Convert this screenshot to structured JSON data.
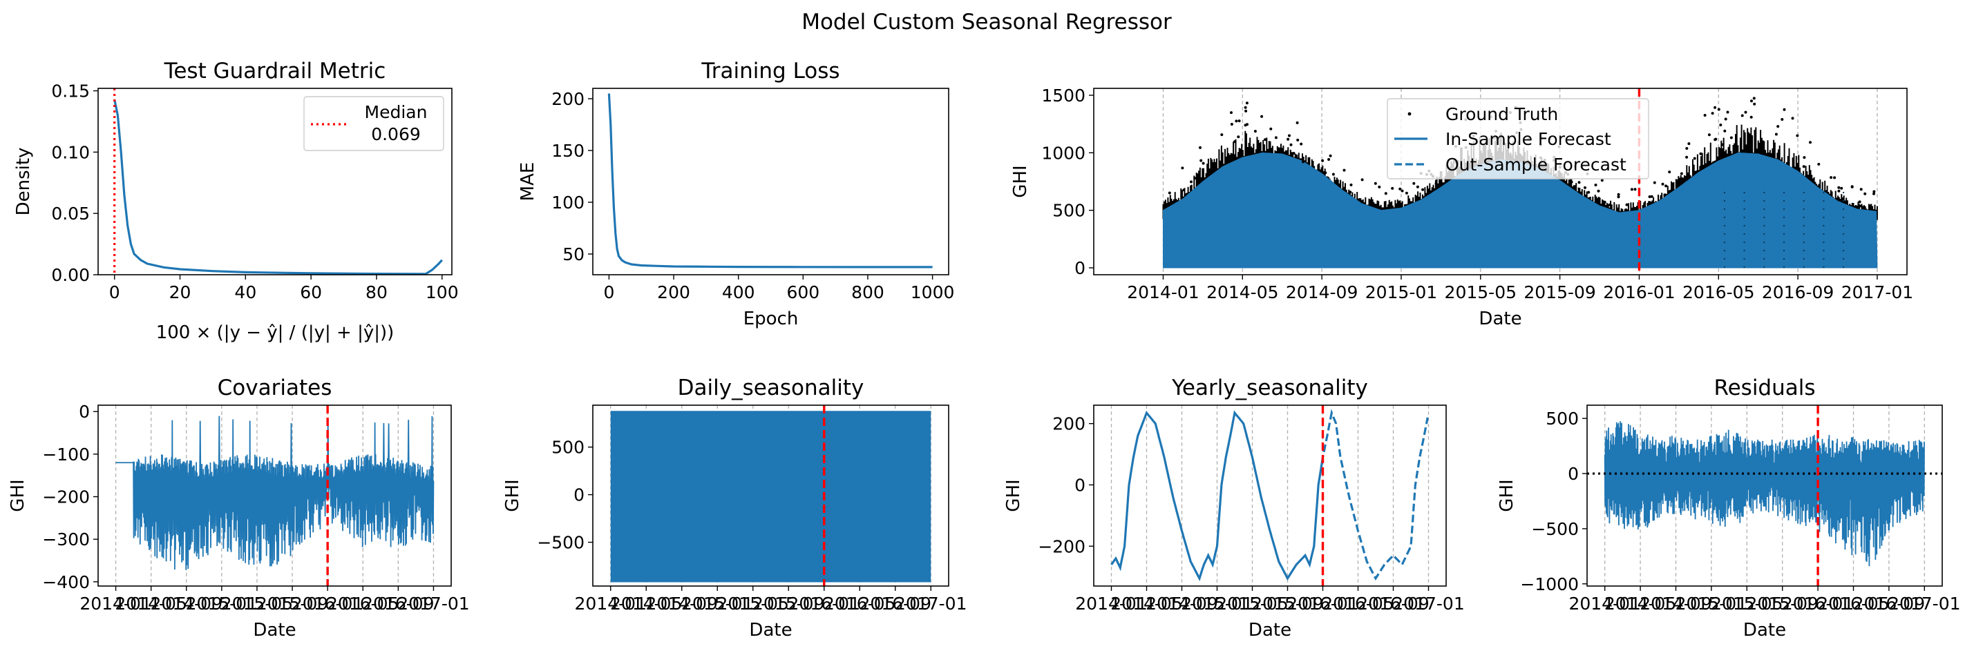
{
  "figure": {
    "title": "Model Custom Seasonal Regressor"
  },
  "colors": {
    "series": "#1f77b4",
    "truth": "#000000",
    "split": "#ff0000",
    "median": "#ff0000",
    "zero_line": "#000000",
    "gridline": "#b0b0b0"
  },
  "chart_data": [
    {
      "id": "guardrail",
      "type": "line",
      "title": "Test Guardrail Metric",
      "xlabel": "100 × (|y − ŷ| / (|y| + |ŷ|))",
      "ylabel": "Density",
      "xlim": [
        -5,
        103
      ],
      "ylim": [
        0,
        0.152
      ],
      "xticks": [
        "0",
        "20",
        "40",
        "60",
        "80",
        "100"
      ],
      "yticks": [
        "0.00",
        "0.05",
        "0.10",
        "0.15"
      ],
      "x": [
        0,
        1,
        2,
        3,
        4,
        5,
        6,
        8,
        10,
        15,
        20,
        30,
        40,
        60,
        80,
        95,
        97,
        99,
        100
      ],
      "values": [
        0.143,
        0.13,
        0.1,
        0.065,
        0.04,
        0.025,
        0.017,
        0.012,
        0.009,
        0.006,
        0.0045,
        0.003,
        0.002,
        0.0012,
        0.0008,
        0.0006,
        0.004,
        0.009,
        0.012
      ],
      "median": 0.069,
      "legend": {
        "label_line1": "Median",
        "label_line2": "0.069",
        "placement": "upper right"
      }
    },
    {
      "id": "training_loss",
      "type": "line",
      "title": "Training Loss",
      "xlabel": "Epoch",
      "ylabel": "MAE",
      "xlim": [
        -50,
        1050
      ],
      "ylim": [
        30,
        210
      ],
      "xticks": [
        "0",
        "200",
        "400",
        "600",
        "800",
        "1000"
      ],
      "yticks": [
        "50",
        "100",
        "150",
        "200"
      ],
      "x": [
        0,
        5,
        10,
        15,
        20,
        25,
        30,
        40,
        50,
        70,
        100,
        150,
        200,
        300,
        400,
        600,
        800,
        1000
      ],
      "values": [
        205,
        175,
        130,
        95,
        70,
        55,
        48,
        44,
        42,
        40,
        39,
        38.5,
        38,
        37.8,
        37.6,
        37.5,
        37.4,
        37.4
      ]
    },
    {
      "id": "forecast",
      "type": "area",
      "title": "",
      "xlabel": "Date",
      "ylabel": "GHI",
      "xlim_months": [
        -3.5,
        37.5
      ],
      "ylim": [
        -60,
        1560
      ],
      "xticks": [
        "2014-01",
        "2014-05",
        "2014-09",
        "2015-01",
        "2015-05",
        "2015-09",
        "2016-01",
        "2016-05",
        "2016-09",
        "2017-01"
      ],
      "yticks": [
        "0",
        "500",
        "1000",
        "1500"
      ],
      "split": "2016-01",
      "series": [
        {
          "name": "Ground Truth",
          "style": "points"
        },
        {
          "name": "In-Sample Forecast",
          "style": "solid"
        },
        {
          "name": "Out-Sample Forecast",
          "style": "dashed"
        }
      ],
      "envelope_months": [
        0,
        1,
        2,
        3,
        4,
        5,
        6,
        7,
        8,
        9,
        10,
        11,
        12,
        13,
        14,
        15,
        16,
        17,
        18,
        19,
        20,
        21,
        22,
        23,
        24,
        25,
        26,
        27,
        28,
        29,
        30,
        31,
        32,
        33,
        34,
        35,
        36
      ],
      "forecast_peak": [
        500,
        600,
        750,
        880,
        960,
        1000,
        990,
        930,
        820,
        680,
        560,
        500,
        520,
        590,
        700,
        820,
        900,
        940,
        920,
        860,
        760,
        640,
        540,
        480,
        500,
        580,
        700,
        830,
        930,
        1000,
        990,
        940,
        840,
        700,
        580,
        510,
        490
      ],
      "truth_peak": [
        620,
        700,
        900,
        1080,
        1200,
        1150,
        1080,
        1000,
        900,
        760,
        650,
        580,
        610,
        680,
        850,
        1050,
        1150,
        1200,
        1100,
        980,
        850,
        720,
        620,
        560,
        580,
        640,
        820,
        1020,
        1150,
        1250,
        1220,
        1150,
        1000,
        820,
        680,
        580,
        560
      ],
      "legend_placement": "upper center"
    },
    {
      "id": "covariates",
      "type": "line",
      "title": "Covariates",
      "xlabel": "Date",
      "ylabel": "GHI",
      "xlim_months": [
        -2,
        38
      ],
      "ylim": [
        -410,
        15
      ],
      "xticks": [
        "2014-01",
        "2014-05",
        "2014-09",
        "2015-01",
        "2015-05",
        "2015-09",
        "2016-01",
        "2016-05",
        "2016-09",
        "2017-01"
      ],
      "yticks": [
        "0",
        "−100",
        "−200",
        "−300",
        "−400"
      ],
      "split": "2016-01",
      "flat_value": -120,
      "flat_until_month": 2,
      "band_months": [
        2,
        4,
        6,
        8,
        10,
        12,
        14,
        16,
        18,
        20,
        22,
        24,
        26,
        28,
        30,
        32,
        34,
        36
      ],
      "band_upper": [
        -110,
        -100,
        -100,
        -110,
        -120,
        -110,
        -100,
        -100,
        -110,
        -120,
        -125,
        -120,
        -110,
        -100,
        -100,
        -110,
        -120,
        -125
      ],
      "band_lower": [
        -320,
        -340,
        -370,
        -380,
        -340,
        -330,
        -360,
        -370,
        -380,
        -340,
        -300,
        -260,
        -300,
        -320,
        -330,
        -320,
        -310,
        -330
      ]
    },
    {
      "id": "daily_seasonality",
      "type": "area",
      "title": "Daily_seasonality",
      "xlabel": "Date",
      "ylabel": "GHI",
      "xlim_months": [
        -2,
        38
      ],
      "ylim": [
        -960,
        940
      ],
      "xticks": [
        "2014-01",
        "2014-05",
        "2014-09",
        "2015-01",
        "2015-05",
        "2015-09",
        "2016-01",
        "2016-05",
        "2016-09",
        "2017-01"
      ],
      "yticks": [
        "500",
        "0",
        "−500"
      ],
      "split": "2016-01",
      "band_upper": 880,
      "band_lower": -920
    },
    {
      "id": "yearly_seasonality",
      "type": "line",
      "title": "Yearly_seasonality",
      "xlabel": "Date",
      "ylabel": "GHI",
      "xlim_months": [
        -2,
        38
      ],
      "ylim": [
        -330,
        260
      ],
      "xticks": [
        "2014-01",
        "2014-05",
        "2014-09",
        "2015-01",
        "2015-05",
        "2015-09",
        "2016-01",
        "2016-05",
        "2016-09",
        "2017-01"
      ],
      "yticks": [
        "200",
        "0",
        "−200"
      ],
      "split": "2016-01",
      "months": [
        0,
        0.5,
        1,
        1.5,
        2,
        2.5,
        3,
        4,
        5,
        6,
        7,
        8,
        9,
        10,
        10.5,
        11,
        11.5,
        12,
        12.5,
        13,
        13.5,
        14,
        15,
        16,
        17,
        18,
        19,
        20,
        21,
        22,
        22.5,
        23,
        23.5,
        24,
        24.5,
        25,
        25.5,
        26,
        27,
        28,
        29,
        30,
        31,
        32,
        33,
        34,
        34.5,
        35,
        35.5,
        36
      ],
      "values": [
        -260,
        -240,
        -270,
        -200,
        0,
        90,
        160,
        235,
        200,
        90,
        -40,
        -150,
        -250,
        -305,
        -260,
        -230,
        -260,
        -200,
        0,
        90,
        160,
        235,
        200,
        90,
        -40,
        -150,
        -250,
        -305,
        -260,
        -230,
        -260,
        -200,
        0,
        90,
        160,
        235,
        200,
        90,
        -40,
        -150,
        -250,
        -305,
        -260,
        -230,
        -260,
        -200,
        0,
        90,
        160,
        235
      ]
    },
    {
      "id": "residuals",
      "type": "line",
      "title": "Residuals",
      "xlabel": "Date",
      "ylabel": "GHI",
      "xlim_months": [
        -2,
        38
      ],
      "ylim": [
        -1020,
        620
      ],
      "xticks": [
        "2014-01",
        "2014-05",
        "2014-09",
        "2015-01",
        "2015-05",
        "2015-09",
        "2016-01",
        "2016-05",
        "2016-09",
        "2017-01"
      ],
      "yticks": [
        "500",
        "0",
        "−500",
        "−1000"
      ],
      "split": "2016-01",
      "zero_line": 0,
      "band_months": [
        0,
        2,
        4,
        6,
        8,
        10,
        12,
        14,
        16,
        18,
        20,
        22,
        24,
        26,
        28,
        30,
        32,
        34,
        36
      ],
      "band_upper": [
        400,
        500,
        380,
        330,
        360,
        300,
        350,
        400,
        330,
        300,
        320,
        300,
        380,
        350,
        330,
        320,
        300,
        300,
        350
      ],
      "band_lower": [
        -450,
        -500,
        -550,
        -400,
        -380,
        -420,
        -450,
        -560,
        -380,
        -350,
        -400,
        -480,
        -520,
        -650,
        -750,
        -900,
        -550,
        -420,
        -350
      ]
    }
  ]
}
